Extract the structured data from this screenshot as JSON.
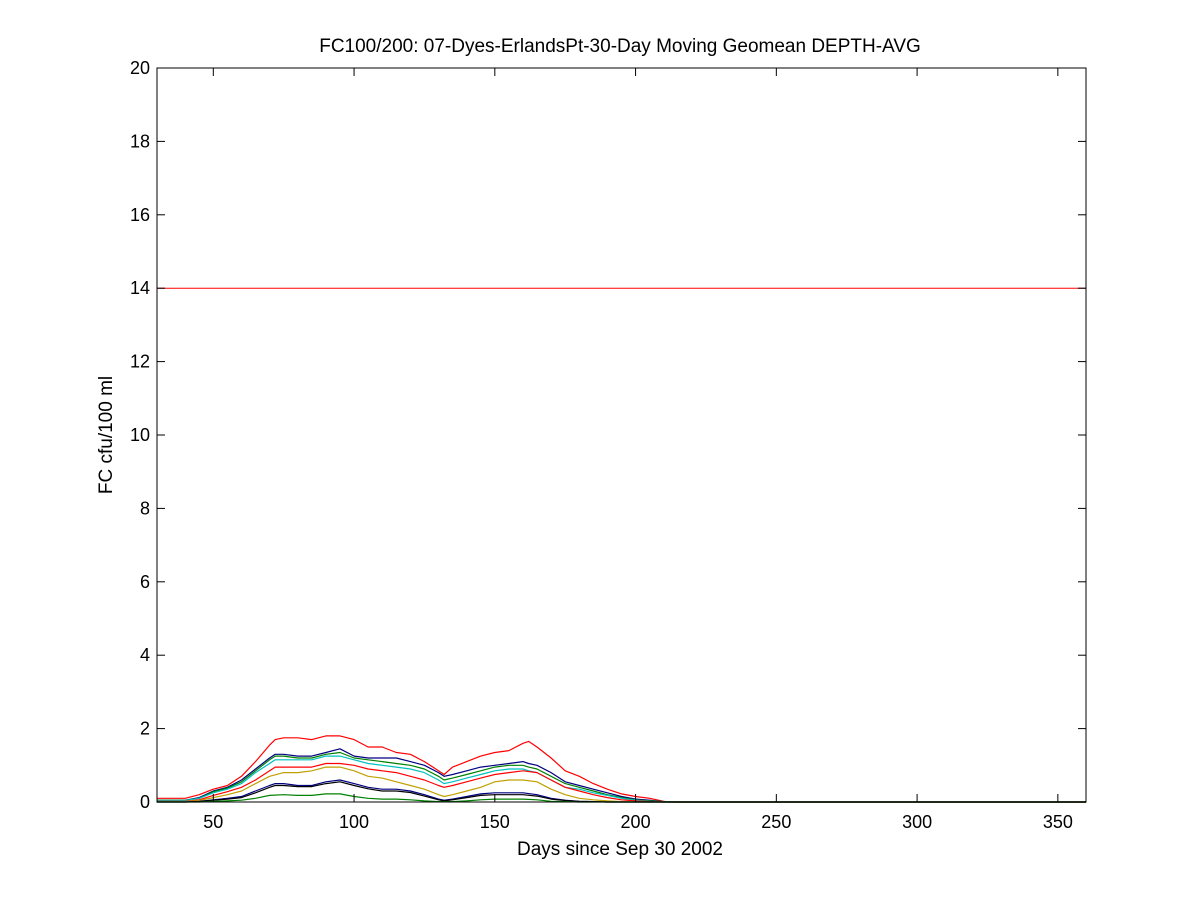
{
  "chart_data": {
    "type": "line",
    "title": "FC100/200: 07-Dyes-ErlandsPt-30-Day Moving Geomean DEPTH-AVG",
    "xlabel": "Days since Sep 30 2002",
    "ylabel": "FC cfu/100 ml",
    "xlim": [
      30,
      360
    ],
    "ylim": [
      0,
      20
    ],
    "xticks": [
      50,
      100,
      150,
      200,
      250,
      300,
      350
    ],
    "yticks": [
      0,
      2,
      4,
      6,
      8,
      10,
      12,
      14,
      16,
      18,
      20
    ],
    "grid": false,
    "reference_line": {
      "y": 14,
      "color": "#ff0000"
    },
    "series": [
      {
        "color": "#ff0000",
        "x": [
          30,
          40,
          45,
          50,
          55,
          60,
          65,
          70,
          72,
          75,
          80,
          85,
          90,
          95,
          100,
          105,
          110,
          115,
          120,
          125,
          130,
          132,
          135,
          140,
          145,
          150,
          155,
          160,
          162,
          165,
          170,
          175,
          180,
          185,
          190,
          195,
          200,
          205,
          210,
          212,
          215,
          220,
          360
        ],
        "y": [
          0.1,
          0.1,
          0.2,
          0.35,
          0.45,
          0.7,
          1.1,
          1.55,
          1.7,
          1.75,
          1.75,
          1.7,
          1.8,
          1.8,
          1.7,
          1.5,
          1.5,
          1.35,
          1.3,
          1.1,
          0.85,
          0.75,
          0.95,
          1.1,
          1.25,
          1.35,
          1.4,
          1.6,
          1.65,
          1.5,
          1.2,
          0.85,
          0.7,
          0.5,
          0.35,
          0.22,
          0.15,
          0.1,
          0.02,
          0,
          0,
          0,
          0
        ]
      },
      {
        "color": "#000080",
        "x": [
          30,
          40,
          45,
          50,
          55,
          60,
          65,
          70,
          72,
          75,
          80,
          85,
          90,
          95,
          100,
          105,
          110,
          115,
          120,
          125,
          130,
          132,
          135,
          140,
          145,
          150,
          155,
          160,
          162,
          165,
          170,
          175,
          180,
          185,
          190,
          195,
          200,
          205,
          210,
          215,
          360
        ],
        "y": [
          0.05,
          0.05,
          0.12,
          0.3,
          0.4,
          0.6,
          0.9,
          1.2,
          1.3,
          1.3,
          1.25,
          1.25,
          1.35,
          1.45,
          1.25,
          1.2,
          1.2,
          1.2,
          1.1,
          1.0,
          0.8,
          0.7,
          0.75,
          0.85,
          0.95,
          1.0,
          1.05,
          1.1,
          1.05,
          1.0,
          0.8,
          0.55,
          0.45,
          0.35,
          0.25,
          0.15,
          0.08,
          0.05,
          0.01,
          0,
          0
        ]
      },
      {
        "color": "#008000",
        "x": [
          30,
          40,
          45,
          50,
          55,
          60,
          65,
          70,
          72,
          75,
          80,
          85,
          90,
          95,
          100,
          105,
          110,
          115,
          120,
          125,
          130,
          132,
          135,
          140,
          145,
          150,
          155,
          160,
          162,
          165,
          170,
          175,
          180,
          185,
          190,
          195,
          200,
          205,
          210,
          215,
          360
        ],
        "y": [
          0.05,
          0.05,
          0.1,
          0.28,
          0.38,
          0.55,
          0.85,
          1.15,
          1.25,
          1.25,
          1.2,
          1.2,
          1.3,
          1.35,
          1.2,
          1.15,
          1.1,
          1.05,
          1.0,
          0.9,
          0.7,
          0.6,
          0.65,
          0.75,
          0.85,
          0.95,
          1.0,
          1.0,
          0.95,
          0.9,
          0.7,
          0.5,
          0.4,
          0.3,
          0.2,
          0.12,
          0.06,
          0.03,
          0.01,
          0,
          0
        ]
      },
      {
        "color": "#00c0c0",
        "x": [
          30,
          40,
          45,
          50,
          55,
          60,
          65,
          70,
          72,
          75,
          80,
          85,
          90,
          95,
          100,
          105,
          110,
          115,
          120,
          125,
          130,
          132,
          135,
          140,
          145,
          150,
          155,
          160,
          162,
          165,
          170,
          175,
          180,
          185,
          190,
          195,
          200,
          205,
          210,
          215,
          360
        ],
        "y": [
          0.04,
          0.04,
          0.1,
          0.25,
          0.35,
          0.5,
          0.8,
          1.05,
          1.15,
          1.15,
          1.15,
          1.15,
          1.25,
          1.25,
          1.15,
          1.05,
          1.0,
          0.95,
          0.9,
          0.8,
          0.6,
          0.5,
          0.55,
          0.65,
          0.75,
          0.85,
          0.9,
          0.9,
          0.85,
          0.8,
          0.6,
          0.4,
          0.35,
          0.25,
          0.18,
          0.1,
          0.05,
          0.02,
          0,
          0,
          0
        ]
      },
      {
        "color": "#ff0000",
        "x": [
          30,
          40,
          45,
          50,
          55,
          60,
          65,
          70,
          72,
          75,
          80,
          85,
          90,
          95,
          100,
          105,
          110,
          115,
          120,
          125,
          130,
          132,
          135,
          140,
          145,
          150,
          155,
          160,
          165,
          170,
          175,
          180,
          185,
          190,
          195,
          200,
          205,
          210,
          360
        ],
        "y": [
          0.02,
          0.02,
          0.06,
          0.18,
          0.28,
          0.4,
          0.6,
          0.85,
          0.95,
          0.95,
          0.95,
          0.95,
          1.05,
          1.05,
          1.0,
          0.9,
          0.85,
          0.8,
          0.7,
          0.6,
          0.45,
          0.4,
          0.45,
          0.55,
          0.65,
          0.75,
          0.8,
          0.85,
          0.8,
          0.6,
          0.4,
          0.3,
          0.2,
          0.12,
          0.06,
          0.03,
          0.01,
          0,
          0
        ]
      },
      {
        "color": "#c0a000",
        "x": [
          30,
          40,
          45,
          50,
          55,
          60,
          65,
          70,
          75,
          80,
          85,
          90,
          95,
          100,
          105,
          110,
          115,
          120,
          125,
          130,
          132,
          135,
          140,
          145,
          150,
          155,
          160,
          165,
          170,
          175,
          180,
          185,
          190,
          195,
          200,
          205,
          360
        ],
        "y": [
          0.01,
          0.01,
          0.04,
          0.12,
          0.2,
          0.3,
          0.5,
          0.7,
          0.8,
          0.8,
          0.85,
          0.95,
          0.95,
          0.85,
          0.7,
          0.65,
          0.55,
          0.45,
          0.35,
          0.2,
          0.15,
          0.2,
          0.3,
          0.4,
          0.55,
          0.6,
          0.6,
          0.55,
          0.35,
          0.2,
          0.1,
          0.06,
          0.03,
          0.01,
          0,
          0,
          0
        ]
      },
      {
        "color": "#000080",
        "x": [
          30,
          40,
          45,
          50,
          55,
          60,
          65,
          70,
          72,
          75,
          80,
          85,
          90,
          95,
          100,
          105,
          110,
          115,
          120,
          125,
          130,
          132,
          135,
          140,
          145,
          150,
          155,
          160,
          165,
          170,
          175,
          180,
          185,
          190,
          195,
          200,
          360
        ],
        "y": [
          0,
          0,
          0.02,
          0.06,
          0.1,
          0.15,
          0.3,
          0.45,
          0.5,
          0.5,
          0.45,
          0.45,
          0.55,
          0.6,
          0.5,
          0.4,
          0.35,
          0.35,
          0.3,
          0.2,
          0.08,
          0.05,
          0.08,
          0.15,
          0.22,
          0.25,
          0.25,
          0.25,
          0.2,
          0.1,
          0.05,
          0.02,
          0.01,
          0,
          0,
          0,
          0
        ]
      },
      {
        "color": "#000000",
        "x": [
          30,
          40,
          45,
          50,
          55,
          60,
          65,
          70,
          72,
          75,
          80,
          85,
          90,
          95,
          100,
          105,
          110,
          115,
          120,
          125,
          130,
          132,
          135,
          140,
          145,
          150,
          155,
          160,
          165,
          170,
          175,
          180,
          185,
          190,
          360
        ],
        "y": [
          0,
          0,
          0.01,
          0.05,
          0.08,
          0.12,
          0.25,
          0.4,
          0.45,
          0.45,
          0.42,
          0.42,
          0.5,
          0.55,
          0.45,
          0.36,
          0.3,
          0.3,
          0.26,
          0.16,
          0.06,
          0.03,
          0.06,
          0.12,
          0.18,
          0.2,
          0.2,
          0.2,
          0.16,
          0.08,
          0.04,
          0.02,
          0.01,
          0,
          0
        ]
      },
      {
        "color": "#008000",
        "x": [
          30,
          40,
          45,
          50,
          55,
          60,
          65,
          70,
          75,
          80,
          85,
          90,
          95,
          100,
          105,
          110,
          115,
          120,
          125,
          130,
          135,
          140,
          145,
          150,
          155,
          160,
          165,
          170,
          175,
          180,
          360
        ],
        "y": [
          0,
          0,
          0,
          0.02,
          0.03,
          0.05,
          0.1,
          0.18,
          0.2,
          0.18,
          0.18,
          0.22,
          0.22,
          0.15,
          0.1,
          0.08,
          0.08,
          0.06,
          0.03,
          0.01,
          0.01,
          0.03,
          0.06,
          0.08,
          0.08,
          0.08,
          0.06,
          0.02,
          0.01,
          0,
          0
        ]
      }
    ]
  }
}
